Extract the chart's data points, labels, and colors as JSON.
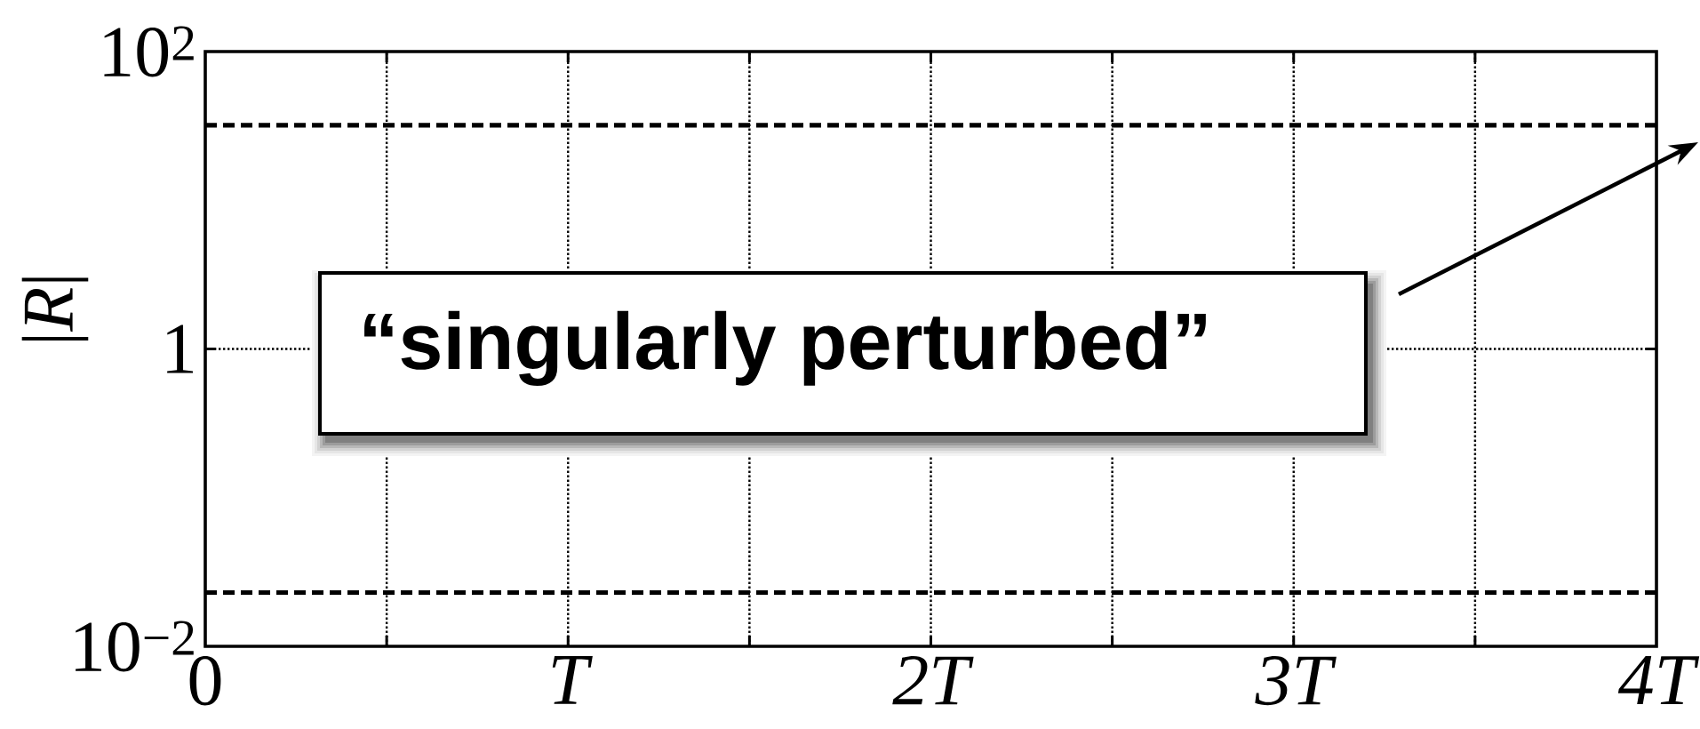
{
  "chart_data": {
    "type": "line",
    "ylabel": "|*R*|",
    "annotations": [
      "“singularly perturbed”"
    ],
    "xlim": [
      0,
      4
    ],
    "xticks": [
      0,
      {
        "value": 0.5,
        "label": null
      },
      {
        "value": 1,
        "label": "T"
      },
      {
        "value": 1.5,
        "label": null
      },
      {
        "value": 2,
        "label": "2T"
      },
      {
        "value": 2.5,
        "label": null
      },
      {
        "value": 3,
        "label": "3T"
      },
      {
        "value": 3.5,
        "label": null
      },
      {
        "value": 4,
        "label": "4T"
      }
    ],
    "ylim": [
      0.01,
      100
    ],
    "yticks": [
      {
        "value": 0.01,
        "label": "10$^{−2}$"
      },
      1,
      {
        "value": 100,
        "label": "10$^{2}$"
      }
    ],
    "log": true,
    "grid": true,
    "ref_lines": [
      {
        "axis": "y",
        "value": 32,
        "color": "#000000",
        "line_style": "dashed"
      },
      {
        "axis": "y",
        "value": 0.023,
        "color": "#000000",
        "line_style": "dashed"
      }
    ]
  }
}
